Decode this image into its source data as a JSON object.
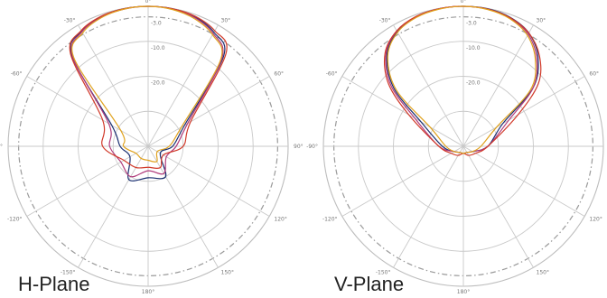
{
  "chart_data": [
    {
      "type": "polar-line",
      "title": "H-Plane",
      "angle_ticks": [
        "0°",
        "30°",
        "60°",
        "90°",
        "120°",
        "150°",
        "180°",
        "-150°",
        "-120°",
        "-90°",
        "-60°",
        "-30°"
      ],
      "ring_labels": [
        "-3.0",
        "-10.0",
        "-20.0"
      ],
      "rlim_db": [
        -40,
        0
      ],
      "series": [
        {
          "color": "#1a2f70",
          "angles": [
            -40,
            -30,
            -20,
            -10,
            0,
            10,
            20,
            30,
            40,
            60,
            90,
            120,
            150,
            180,
            -150,
            -120,
            -90,
            -60
          ],
          "values_db": [
            -6,
            -2,
            -0.6,
            -0.1,
            0,
            -0.1,
            -0.7,
            -2.4,
            -6.5,
            -28,
            -33,
            -36,
            -30,
            -31,
            -29,
            -34,
            -32,
            -28
          ]
        },
        {
          "color": "#b03a7a",
          "angles": [
            -40,
            -30,
            -20,
            -10,
            0,
            10,
            20,
            30,
            40,
            60,
            90,
            120,
            150,
            180,
            -150,
            -120,
            -90,
            -60
          ],
          "values_db": [
            -6.4,
            -2.2,
            -0.8,
            -0.2,
            0,
            -0.2,
            -0.9,
            -2.8,
            -7.2,
            -27,
            -32,
            -34,
            -31,
            -33,
            -30,
            -31,
            -29,
            -27
          ]
        },
        {
          "color": "#d13a2a",
          "angles": [
            -40,
            -30,
            -20,
            -10,
            0,
            10,
            20,
            30,
            40,
            60,
            90,
            120,
            150,
            180,
            -150,
            -120,
            -90,
            -60
          ],
          "values_db": [
            -5.5,
            -1.8,
            -0.5,
            -0.1,
            0,
            -0.1,
            -0.5,
            -1.9,
            -5.4,
            -26,
            -30,
            -35,
            -33,
            -34,
            -33,
            -32,
            -27,
            -25
          ]
        },
        {
          "color": "#e0a21e",
          "angles": [
            -40,
            -30,
            -20,
            -10,
            0,
            10,
            20,
            30,
            40,
            60,
            90,
            120,
            150,
            180,
            -150,
            -120,
            -90,
            -60
          ],
          "values_db": [
            -7,
            -2.6,
            -0.9,
            -0.2,
            0,
            -0.3,
            -1.2,
            -3.2,
            -7.8,
            -29,
            -34,
            -37,
            -35,
            -36,
            -36,
            -36,
            -33,
            -31
          ]
        }
      ]
    },
    {
      "type": "polar-line",
      "title": "V-Plane",
      "angle_ticks": [
        "0°",
        "30°",
        "60°",
        "90°",
        "120°",
        "150°",
        "180°",
        "-150°",
        "-120°",
        "-90°",
        "-60°",
        "-30°"
      ],
      "ring_labels": [
        "-3.0",
        "-10.0",
        "-20.0"
      ],
      "rlim_db": [
        -40,
        0
      ],
      "series": [
        {
          "color": "#1a2f70",
          "angles": [
            -50,
            -40,
            -30,
            -20,
            -10,
            0,
            10,
            20,
            30,
            40,
            50,
            60,
            90,
            120,
            150,
            180,
            -150,
            -120,
            -90,
            -60
          ],
          "values_db": [
            -14,
            -6,
            -2.2,
            -0.7,
            -0.1,
            0,
            -0.1,
            -0.8,
            -2.6,
            -6.8,
            -14,
            -27,
            -33,
            -37,
            -38,
            -38,
            -38,
            -37,
            -34,
            -26
          ]
        },
        {
          "color": "#b03a7a",
          "angles": [
            -50,
            -40,
            -30,
            -20,
            -10,
            0,
            10,
            20,
            30,
            40,
            50,
            60,
            90,
            120,
            150,
            180,
            -150,
            -120,
            -90,
            -60
          ],
          "values_db": [
            -13,
            -5.6,
            -2,
            -0.6,
            -0.1,
            0,
            -0.2,
            -1,
            -3,
            -7.4,
            -14,
            -25,
            -33,
            -37,
            -38,
            -38,
            -38,
            -37,
            -33,
            -24
          ]
        },
        {
          "color": "#d13a2a",
          "angles": [
            -50,
            -40,
            -30,
            -20,
            -10,
            0,
            10,
            20,
            30,
            40,
            50,
            60,
            90,
            120,
            150,
            180,
            -150,
            -120,
            -90,
            -60
          ],
          "values_db": [
            -12,
            -5.2,
            -1.9,
            -0.5,
            -0.1,
            0,
            -0.2,
            -0.9,
            -2.6,
            -6.2,
            -12,
            -22,
            -33,
            -36,
            -37,
            -38,
            -37,
            -36,
            -33,
            -22
          ]
        },
        {
          "color": "#e0a21e",
          "angles": [
            -50,
            -40,
            -30,
            -20,
            -10,
            0,
            10,
            20,
            30,
            40,
            50,
            60,
            90,
            120,
            150,
            180,
            -150,
            -120,
            -90,
            -60
          ],
          "values_db": [
            -15,
            -6.4,
            -2.4,
            -0.8,
            -0.2,
            0,
            -0.3,
            -1.2,
            -3.4,
            -8,
            -15,
            -29,
            -35,
            -37,
            -38,
            -38,
            -38,
            -37,
            -35,
            -29
          ]
        }
      ]
    }
  ]
}
